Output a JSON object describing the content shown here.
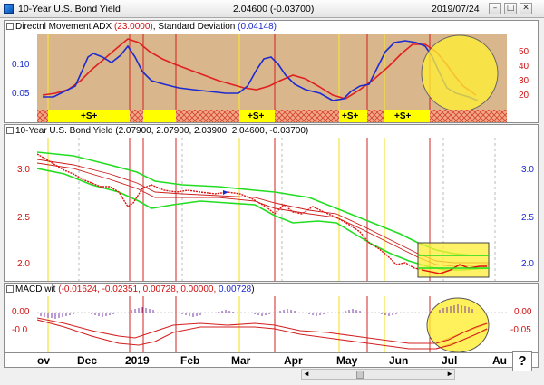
{
  "window": {
    "title": "10-Year U.S. Bond Yield",
    "price_readout": "2.04600 (-0.03700)",
    "date_readout": "2019/07/24",
    "minimize_glyph": "–",
    "maximize_glyph": "□",
    "close_glyph": "✕"
  },
  "adx_panel": {
    "header_prefix": "Directnl Movement ADX ",
    "adx_value": "(23.0000)",
    "separator": ", ",
    "std_label": "Standard Deviation ",
    "std_value": "(0.04148)",
    "left_axis": [
      "0.10",
      "0.05"
    ],
    "right_axis": [
      "50",
      "40",
      "30",
      "20"
    ],
    "signal_labels": [
      "+S+",
      "+S+",
      "+S+",
      "+S+"
    ],
    "colors": {
      "adx": "#e02020",
      "std": "#1e2ad0"
    }
  },
  "price_panel": {
    "header": "10-Year U.S. Bond Yield (2.07900, 2.07900, 2.03900, 2.04600, -0.03700)",
    "left_axis": [
      "3.0",
      "2.5",
      "2.0"
    ],
    "right_axis": [
      "3.0",
      "2.5",
      "2.0"
    ],
    "colors": {
      "price": "#e01010",
      "band": "#22dd22",
      "right_axis": "#1a2acc"
    }
  },
  "macd_panel": {
    "header_prefix": "MACD wit ",
    "values_red": "(-0.01624, -0.02351, 0.00728, 0.00000, ",
    "value_blue": "0.00728",
    "close_paren": ")",
    "left_axis": [
      "0.00",
      "-0.0"
    ],
    "right_axis": [
      "0.00",
      "-0.05"
    ]
  },
  "x_axis": {
    "labels": [
      "ov",
      "Dec",
      "2019",
      "Feb",
      "Mar",
      "Apr",
      "May",
      "Jun",
      "Jul",
      "Au"
    ]
  },
  "scrollbar": {
    "left_arrow": "◄",
    "right_arrow": "►"
  },
  "help": {
    "label": "?"
  }
}
